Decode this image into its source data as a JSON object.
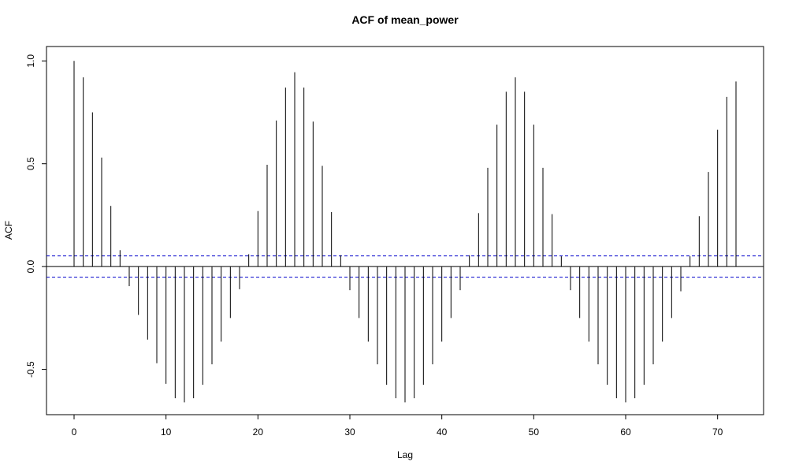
{
  "chart_data": {
    "type": "bar",
    "title": "ACF of mean_power",
    "xlabel": "Lag",
    "ylabel": "ACF",
    "xlim": [
      -3,
      75
    ],
    "ylim": [
      -0.72,
      1.07
    ],
    "x_ticks": [
      0,
      10,
      20,
      30,
      40,
      50,
      60,
      70
    ],
    "y_ticks": [
      -0.5,
      0.0,
      0.5,
      1.0
    ],
    "x_tick_labels": [
      "0",
      "10",
      "20",
      "30",
      "40",
      "50",
      "60",
      "70"
    ],
    "y_tick_labels": [
      "-0.5",
      "0.0",
      "0.5",
      "1.0"
    ],
    "lags": [
      0,
      1,
      2,
      3,
      4,
      5,
      6,
      7,
      8,
      9,
      10,
      11,
      12,
      13,
      14,
      15,
      16,
      17,
      18,
      19,
      20,
      21,
      22,
      23,
      24,
      25,
      26,
      27,
      28,
      29,
      30,
      31,
      32,
      33,
      34,
      35,
      36,
      37,
      38,
      39,
      40,
      41,
      42,
      43,
      44,
      45,
      46,
      47,
      48,
      49,
      50,
      51,
      52,
      53,
      54,
      55,
      56,
      57,
      58,
      59,
      60,
      61,
      62,
      63,
      64,
      65,
      66,
      67,
      68,
      69,
      70,
      71,
      72
    ],
    "values": [
      1.0,
      0.92,
      0.75,
      0.53,
      0.295,
      0.08,
      -0.095,
      -0.235,
      -0.355,
      -0.47,
      -0.57,
      -0.64,
      -0.66,
      -0.64,
      -0.575,
      -0.475,
      -0.365,
      -0.25,
      -0.11,
      0.06,
      0.27,
      0.495,
      0.71,
      0.87,
      0.945,
      0.87,
      0.705,
      0.49,
      0.265,
      0.055,
      -0.115,
      -0.25,
      -0.365,
      -0.475,
      -0.575,
      -0.64,
      -0.66,
      -0.64,
      -0.575,
      -0.475,
      -0.365,
      -0.25,
      -0.115,
      0.055,
      0.26,
      0.48,
      0.69,
      0.85,
      0.92,
      0.85,
      0.69,
      0.48,
      0.255,
      0.05,
      -0.115,
      -0.25,
      -0.365,
      -0.475,
      -0.575,
      -0.64,
      -0.66,
      -0.64,
      -0.575,
      -0.475,
      -0.365,
      -0.25,
      -0.12,
      0.05,
      0.245,
      0.46,
      0.665,
      0.825,
      0.9
    ],
    "confidence_bound": 0.0517,
    "zero_line_color": "#000000",
    "bar_color": "#000000",
    "bound_color": "#0000cc",
    "grid": false,
    "legend": false
  }
}
